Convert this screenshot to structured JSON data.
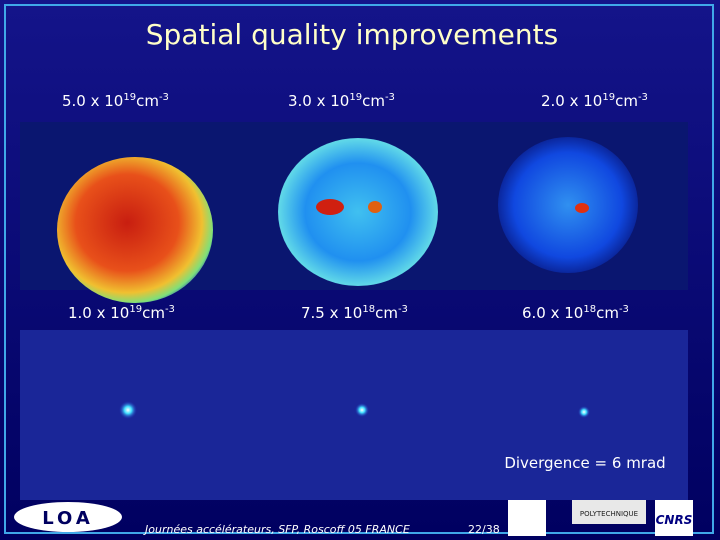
{
  "title": "Spatial quality improvements",
  "panels": [
    {
      "base": "5.0 x 10",
      "exp": "19",
      "unit": "cm",
      "unit_exp": "-3"
    },
    {
      "base": "3.0 x 10",
      "exp": "19",
      "unit": "cm",
      "unit_exp": "-3"
    },
    {
      "base": "2.0 x 10",
      "exp": "19",
      "unit": "cm",
      "unit_exp": "-3"
    },
    {
      "base": "1.0 x 10",
      "exp": "19",
      "unit": "cm",
      "unit_exp": "-3"
    },
    {
      "base": "7.5 x 10",
      "exp": "18",
      "unit": "cm",
      "unit_exp": "-3"
    },
    {
      "base": "6.0 x 10",
      "exp": "18",
      "unit": "cm",
      "unit_exp": "-3"
    }
  ],
  "annotation": "Divergence = 6 mrad",
  "footer": {
    "logo": "LOA",
    "text": "Journées accélérateurs, SFP, Roscoff 05 FRANCE",
    "page": "22/38",
    "logo2": "POLYTECHNIQUE",
    "logo3": "CNRS"
  }
}
